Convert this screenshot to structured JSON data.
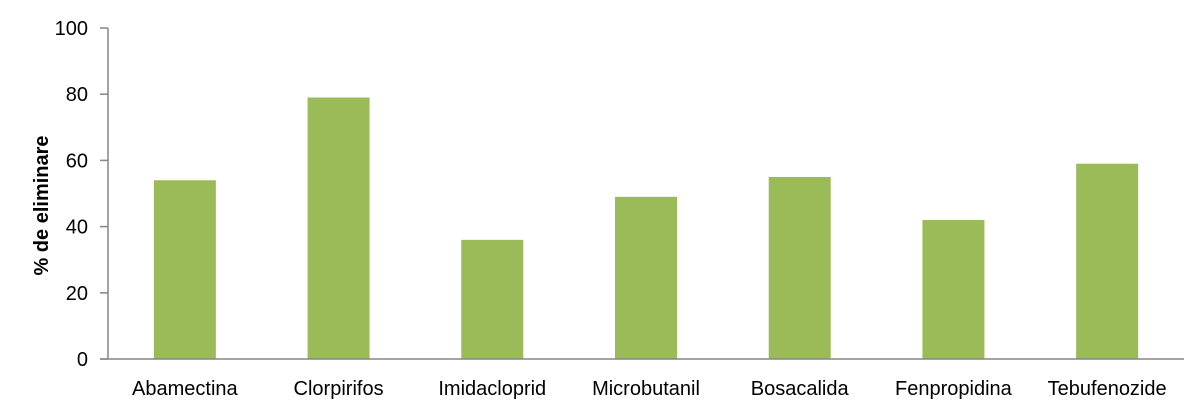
{
  "chart_data": {
    "type": "bar",
    "title": "",
    "xlabel": "",
    "ylabel": "% de eliminare",
    "categories": [
      "Abamectina",
      "Clorpirifos",
      "Imidacloprid",
      "Microbutanil",
      "Bosacalida",
      "Fenpropidina",
      "Tebufenozide"
    ],
    "values": [
      54,
      79,
      36,
      49,
      55,
      42,
      59
    ],
    "ylim": [
      0,
      100
    ],
    "yticks": [
      "0",
      "20",
      "40",
      "60",
      "80",
      "100"
    ],
    "grid": false,
    "legend": "none",
    "bar_color": "#9BBB59",
    "axis_color": "#868686"
  }
}
